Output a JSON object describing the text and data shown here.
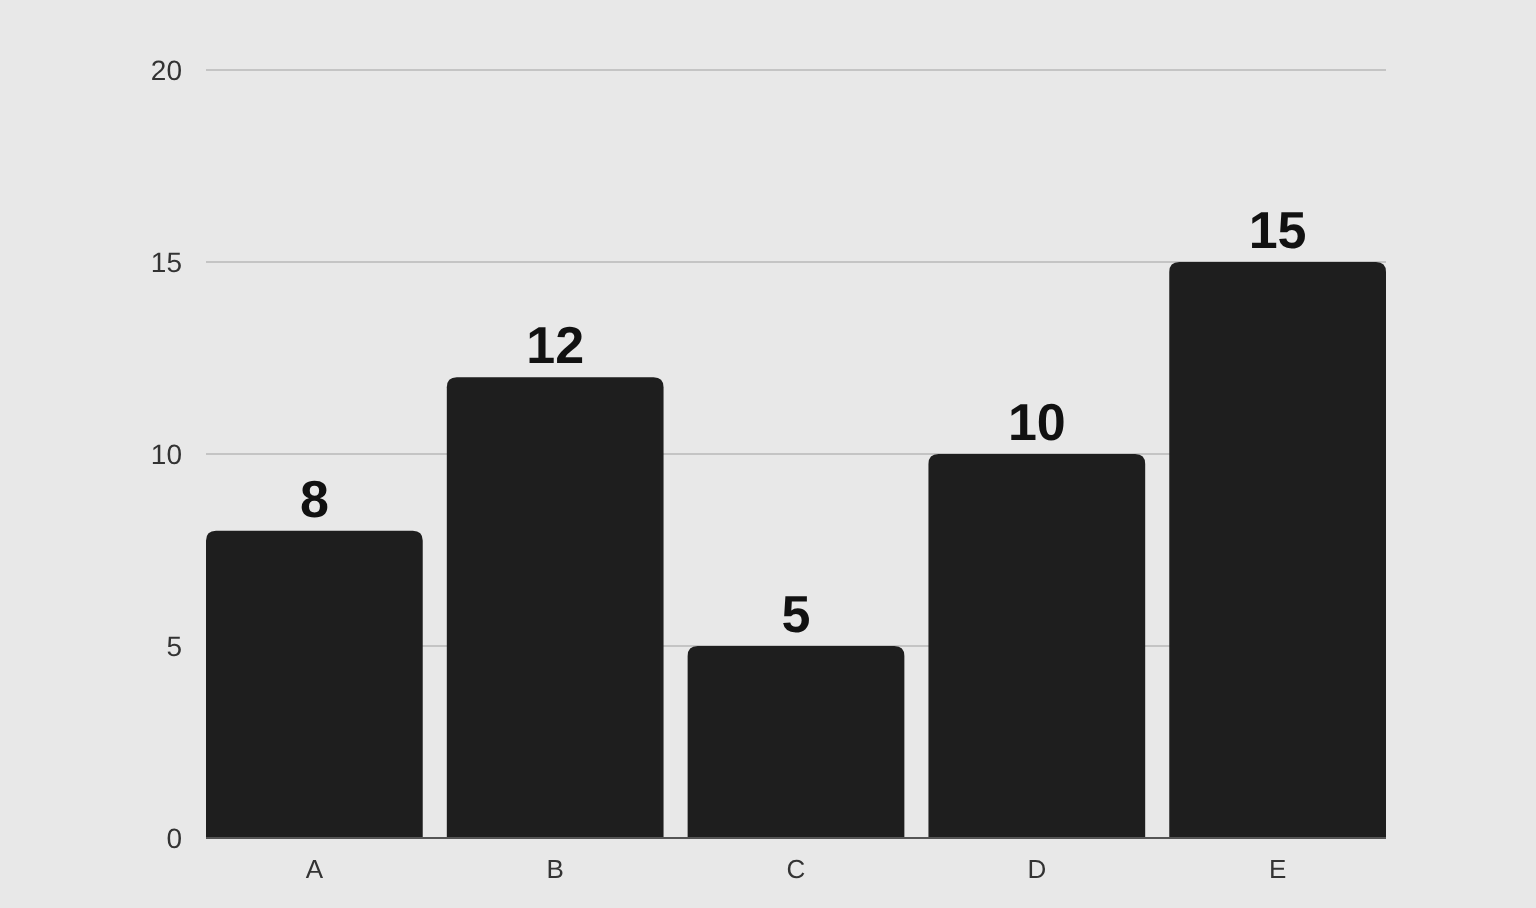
{
  "chart_data": {
    "type": "bar",
    "categories": [
      "A",
      "B",
      "C",
      "D",
      "E"
    ],
    "values": [
      8,
      12,
      5,
      10,
      15
    ],
    "color": "#1e1e1e",
    "ylim": [
      0,
      20
    ],
    "yticks": [
      0,
      5,
      10,
      15,
      20
    ],
    "grid": "y",
    "data_labels": true
  }
}
